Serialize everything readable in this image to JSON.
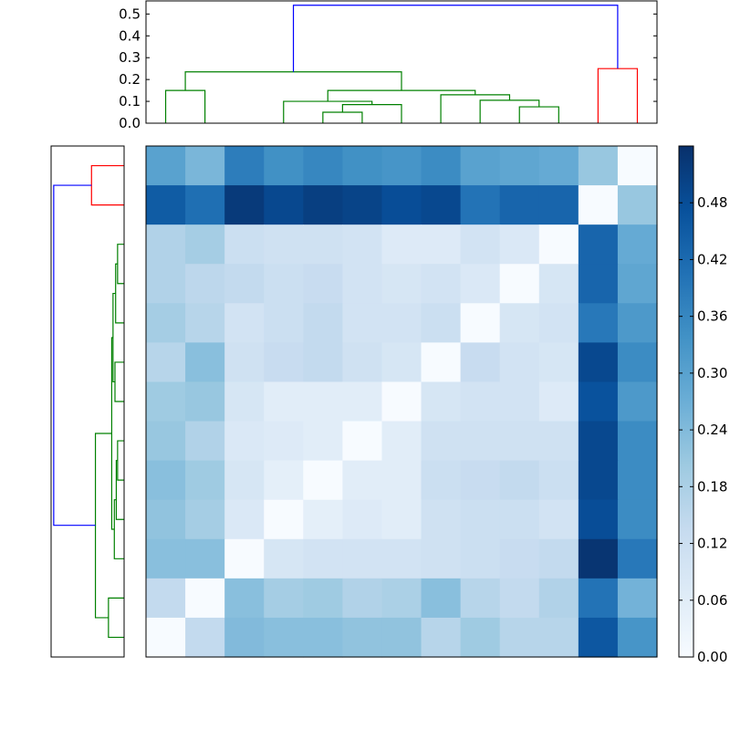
{
  "chart_data": [
    {
      "type": "dendrogram",
      "orientation": "top",
      "yticks": [
        "0.0",
        "0.1",
        "0.2",
        "0.3",
        "0.4",
        "0.5"
      ],
      "ylim": [
        0,
        0.56
      ],
      "leaf_count": 13,
      "colors": {
        "cluster_a": "#008000",
        "cluster_b": "#ff0000",
        "root": "#0000ff"
      },
      "links": [
        {
          "left": 4.5,
          "right": 5.5,
          "left_height": 0,
          "right_height": 0,
          "height": 0.05,
          "color": "#008000"
        },
        {
          "left": 5.0,
          "right": 6.5,
          "left_height": 0.05,
          "right_height": 0,
          "height": 0.085,
          "color": "#008000"
        },
        {
          "left": 3.5,
          "right": 5.75,
          "left_height": 0,
          "right_height": 0.085,
          "height": 0.1,
          "color": "#008000"
        },
        {
          "left": 9.5,
          "right": 10.5,
          "left_height": 0,
          "right_height": 0,
          "height": 0.075,
          "color": "#008000"
        },
        {
          "left": 8.5,
          "right": 10.0,
          "left_height": 0,
          "right_height": 0.075,
          "height": 0.105,
          "color": "#008000"
        },
        {
          "left": 7.5,
          "right": 9.25,
          "left_height": 0,
          "right_height": 0.105,
          "height": 0.13,
          "color": "#008000"
        },
        {
          "left": 4.625,
          "right": 8.375,
          "left_height": 0.1,
          "right_height": 0.13,
          "height": 0.15,
          "color": "#008000"
        },
        {
          "left": 0.5,
          "right": 1.5,
          "left_height": 0,
          "right_height": 0,
          "height": 0.15,
          "color": "#008000"
        },
        {
          "left": 1.0,
          "right": 6.5,
          "left_height": 0.15,
          "right_height": 0.15,
          "height": 0.235,
          "color": "#008000"
        },
        {
          "left": 11.5,
          "right": 12.5,
          "left_height": 0,
          "right_height": 0,
          "height": 0.25,
          "color": "#ff0000"
        },
        {
          "left": 3.75,
          "right": 12.0,
          "left_height": 0.235,
          "right_height": 0.25,
          "height": 0.54,
          "color": "#0000ff"
        }
      ]
    },
    {
      "type": "dendrogram",
      "orientation": "left",
      "leaf_count": 13,
      "note_order": "top-to-bottom leaves",
      "links": [
        {
          "a": 0.5,
          "b": 1.5,
          "ha": 0,
          "hb": 0,
          "h": 0.25,
          "color": "#ff0000"
        },
        {
          "a": 2.5,
          "b": 3.5,
          "ha": 0,
          "hb": 0,
          "h": 0.05,
          "color": "#008000"
        },
        {
          "a": 3.0,
          "b": 4.5,
          "ha": 0.05,
          "hb": 0,
          "h": 0.065,
          "color": "#008000"
        },
        {
          "a": 5.5,
          "b": 6.5,
          "ha": 0,
          "hb": 0,
          "h": 0.07,
          "color": "#008000"
        },
        {
          "a": 3.75,
          "b": 6.0,
          "ha": 0.065,
          "hb": 0.07,
          "h": 0.085,
          "color": "#008000"
        },
        {
          "a": 7.5,
          "b": 8.5,
          "ha": 0,
          "hb": 0,
          "h": 0.05,
          "color": "#008000"
        },
        {
          "a": 8.0,
          "b": 9.5,
          "ha": 0.05,
          "hb": 0,
          "h": 0.06,
          "color": "#008000"
        },
        {
          "a": 9.0,
          "b": 10.5,
          "ha": 0.06,
          "hb": 0,
          "h": 0.075,
          "color": "#008000"
        },
        {
          "a": 4.875,
          "b": 9.75,
          "ha": 0.085,
          "hb": 0.075,
          "h": 0.095,
          "color": "#008000"
        },
        {
          "a": 11.5,
          "b": 12.5,
          "ha": 0,
          "hb": 0,
          "h": 0.12,
          "color": "#008000"
        },
        {
          "a": 7.3125,
          "b": 12.0,
          "ha": 0.095,
          "hb": 0.12,
          "h": 0.22,
          "color": "#008000"
        },
        {
          "a": 1.0,
          "b": 9.65,
          "ha": 0.25,
          "hb": 0.22,
          "h": 0.54,
          "color": "#0000ff"
        }
      ]
    },
    {
      "type": "heatmap",
      "rows": 13,
      "cols": 13,
      "values": [
        [
          0.3,
          0.25,
          0.38,
          0.34,
          0.36,
          0.34,
          0.33,
          0.35,
          0.3,
          0.29,
          0.28,
          0.21,
          0.0
        ],
        [
          0.45,
          0.41,
          0.52,
          0.49,
          0.51,
          0.5,
          0.48,
          0.49,
          0.4,
          0.43,
          0.43,
          0.0,
          0.21
        ],
        [
          0.17,
          0.19,
          0.12,
          0.11,
          0.11,
          0.1,
          0.07,
          0.07,
          0.1,
          0.08,
          0.0,
          0.43,
          0.28
        ],
        [
          0.17,
          0.15,
          0.14,
          0.12,
          0.13,
          0.1,
          0.09,
          0.1,
          0.08,
          0.0,
          0.09,
          0.43,
          0.29
        ],
        [
          0.19,
          0.16,
          0.1,
          0.12,
          0.14,
          0.1,
          0.1,
          0.12,
          0.0,
          0.09,
          0.1,
          0.39,
          0.32
        ],
        [
          0.16,
          0.23,
          0.11,
          0.13,
          0.14,
          0.11,
          0.09,
          0.0,
          0.13,
          0.1,
          0.09,
          0.49,
          0.35
        ],
        [
          0.2,
          0.21,
          0.09,
          0.06,
          0.06,
          0.06,
          0.0,
          0.09,
          0.1,
          0.1,
          0.07,
          0.47,
          0.32
        ],
        [
          0.21,
          0.17,
          0.08,
          0.07,
          0.06,
          0.0,
          0.06,
          0.11,
          0.11,
          0.11,
          0.11,
          0.49,
          0.35
        ],
        [
          0.23,
          0.2,
          0.09,
          0.05,
          0.0,
          0.06,
          0.06,
          0.12,
          0.13,
          0.14,
          0.12,
          0.49,
          0.35
        ],
        [
          0.22,
          0.19,
          0.08,
          0.0,
          0.05,
          0.07,
          0.06,
          0.11,
          0.12,
          0.12,
          0.1,
          0.48,
          0.35
        ],
        [
          0.23,
          0.23,
          0.0,
          0.09,
          0.1,
          0.1,
          0.1,
          0.11,
          0.12,
          0.13,
          0.14,
          0.53,
          0.39
        ],
        [
          0.14,
          0.0,
          0.23,
          0.19,
          0.2,
          0.17,
          0.18,
          0.23,
          0.16,
          0.14,
          0.17,
          0.4,
          0.26
        ],
        [
          0.0,
          0.14,
          0.24,
          0.23,
          0.23,
          0.22,
          0.22,
          0.16,
          0.2,
          0.16,
          0.16,
          0.46,
          0.33
        ]
      ]
    },
    {
      "type": "colorbar",
      "range": [
        0,
        0.54
      ],
      "colormap": "Blues",
      "ticks": [
        "0.00",
        "0.06",
        "0.12",
        "0.18",
        "0.24",
        "0.30",
        "0.36",
        "0.42",
        "0.48"
      ],
      "tick_values": [
        0,
        0.06,
        0.12,
        0.18,
        0.24,
        0.3,
        0.36,
        0.42,
        0.48
      ]
    }
  ]
}
